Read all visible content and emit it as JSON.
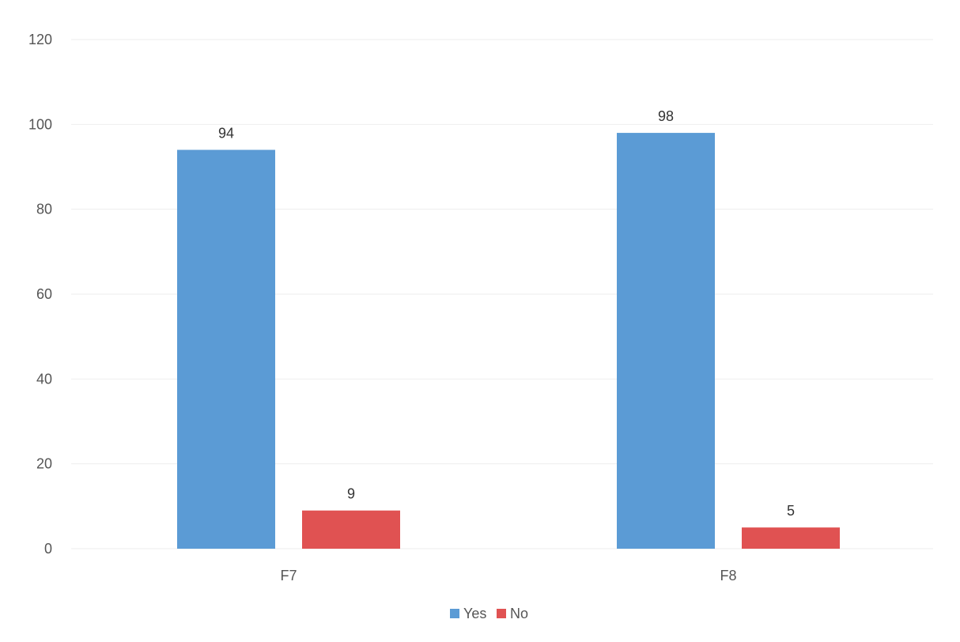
{
  "chart_data": {
    "type": "bar",
    "categories": [
      "F7",
      "F8"
    ],
    "series": [
      {
        "name": "Yes",
        "values": [
          94,
          98
        ],
        "color": "#5b9bd5"
      },
      {
        "name": "No",
        "values": [
          9,
          5
        ],
        "color": "#e05252"
      }
    ],
    "ylim": [
      0,
      120
    ],
    "yticks": [
      0,
      20,
      40,
      60,
      80,
      100,
      120
    ],
    "grid": true,
    "legend_position": "bottom"
  }
}
